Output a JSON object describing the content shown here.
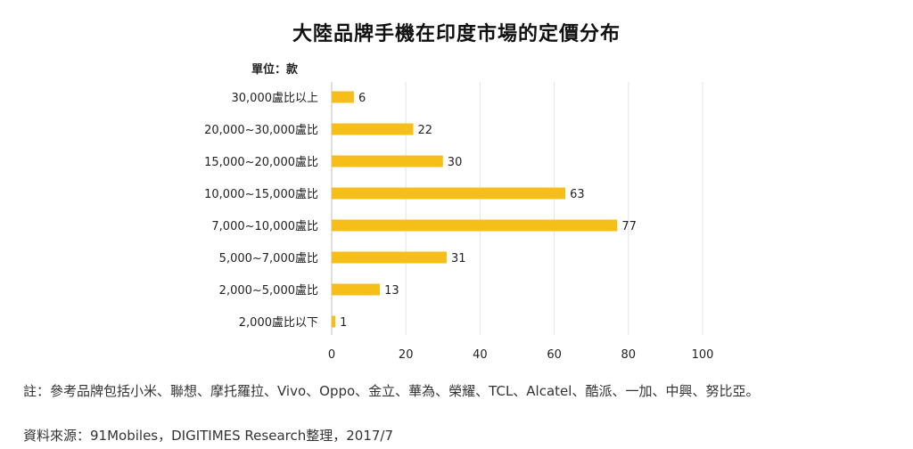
{
  "title": "大陸品牌手機在印度市場的定價分布",
  "unit_label": "單位：款",
  "note": "註：參考品牌包括小米、聯想、摩托羅拉、Vivo、Oppo、金立、華為、榮耀、TCL、Alcatel、酷派、一加、中興、努比亞。",
  "source": "資料來源：91Mobiles，DIGITIMES Research整理，2017/7",
  "colors": {
    "bar": "#F5BE18",
    "grid": "#E3E3E3",
    "axis": "#BFBFBF"
  },
  "chart_data": {
    "type": "bar",
    "orientation": "horizontal",
    "title": "大陸品牌手機在印度市場的定價分布",
    "ylabel": "單位：款",
    "categories": [
      "30,000盧比以上",
      "20,000~30,000盧比",
      "15,000~20,000盧比",
      "10,000~15,000盧比",
      "7,000~10,000盧比",
      "5,000~7,000盧比",
      "2,000~5,000盧比",
      "2,000盧比以下"
    ],
    "values": [
      6,
      22,
      30,
      63,
      77,
      31,
      13,
      1
    ],
    "xlim": [
      0,
      100
    ],
    "xticks": [
      0,
      20,
      40,
      60,
      80,
      100
    ],
    "grid": true,
    "legend": false
  }
}
